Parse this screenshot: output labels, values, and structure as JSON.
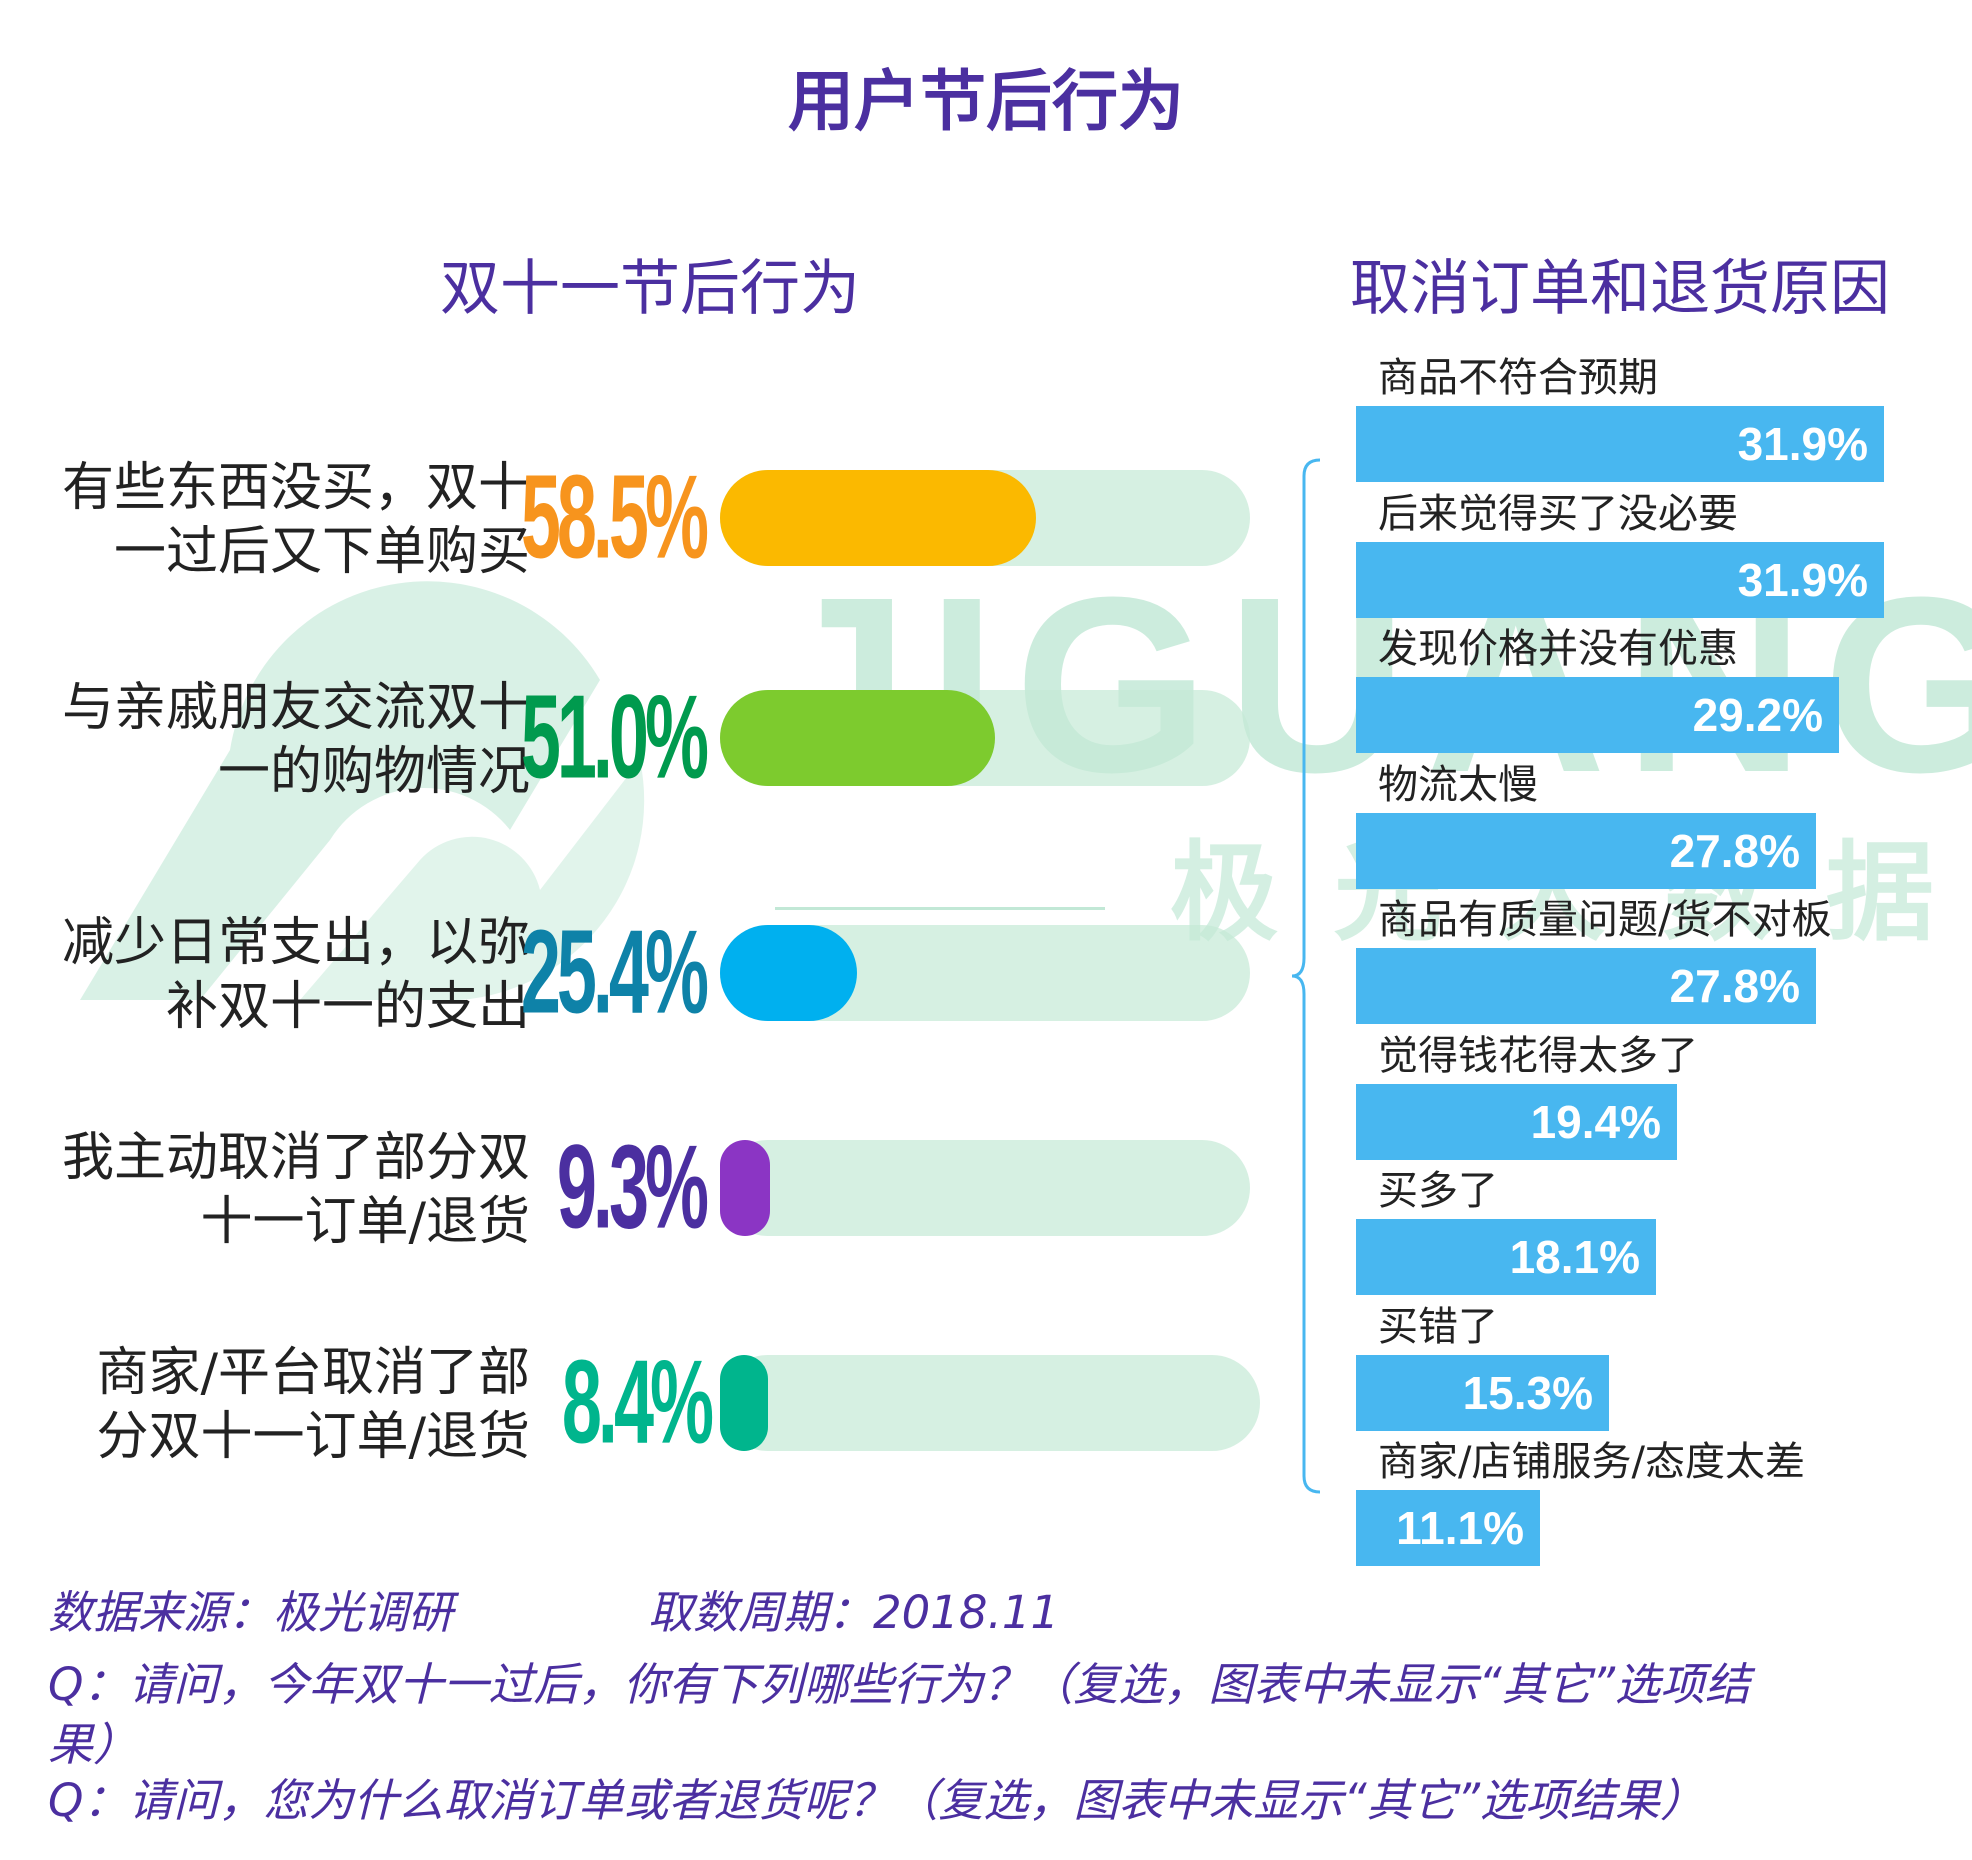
{
  "title": "用户节后行为",
  "watermark": {
    "brand": "JIGUANG",
    "cn": "极光大数据"
  },
  "chart_data": [
    {
      "type": "bar",
      "title": "双十一节后行为",
      "orientation": "horizontal",
      "unit": "%",
      "xlim": [
        0,
        100
      ],
      "categories": [
        "有些东西没买，双十一过后又下单购买",
        "与亲戚朋友交流双十一的购物情况",
        "减少日常支出，以弥补双十一的支出",
        "我主动取消了部分双十一订单/退货",
        "商家/平台取消了部分双十一订单/退货"
      ],
      "labels": [
        [
          "有些东西没买，双十",
          "一过后又下单购买"
        ],
        [
          "与亲戚朋友交流双十",
          "一的购物情况"
        ],
        [
          "减少日常支出，以弥",
          "补双十一的支出"
        ],
        [
          "我主动取消了部分双",
          "十一订单/退货"
        ],
        [
          "商家/平台取消了部",
          "分双十一订单/退货"
        ]
      ],
      "values": [
        58.5,
        51.0,
        25.4,
        9.3,
        8.4
      ],
      "value_labels": [
        "58.5%",
        "51.0%",
        "25.4%",
        "9.3%",
        "8.4%"
      ],
      "colors": [
        "#fbb900",
        "#7dcb2e",
        "#00b0ef",
        "#8b35c4",
        "#00b58d"
      ],
      "label_colors": [
        "#f7941d",
        "#009a4e",
        "#0e82a8",
        "#4b2fa0",
        "#00b58d"
      ]
    },
    {
      "type": "bar",
      "title": "取消订单和退货原因",
      "orientation": "horizontal",
      "unit": "%",
      "xlim": [
        0,
        40
      ],
      "categories": [
        "商品不符合预期",
        "后来觉得买了没必要",
        "发现价格并没有优惠",
        "物流太慢",
        "商品有质量问题/货不对板",
        "觉得钱花得太多了",
        "买多了",
        "买错了",
        "商家/店铺服务/态度太差"
      ],
      "values": [
        31.9,
        31.9,
        29.2,
        27.8,
        27.8,
        19.4,
        18.1,
        15.3,
        11.1
      ],
      "value_labels": [
        "31.9%",
        "31.9%",
        "29.2%",
        "27.8%",
        "27.8%",
        "19.4%",
        "18.1%",
        "15.3%",
        "11.1%"
      ],
      "color": "#48b7f0"
    }
  ],
  "footer": {
    "source": "数据来源：极光调研",
    "period": "取数周期：2018.11",
    "q1_line1": "Q：请问，今年双十一过后，你有下列哪些行为？（复选，图表中未显示“其它”选项结",
    "q1_line2": "果）",
    "q2": "Q：请问，您为什么取消订单或者退货呢？（复选，图表中未显示“其它”选项结果）"
  }
}
